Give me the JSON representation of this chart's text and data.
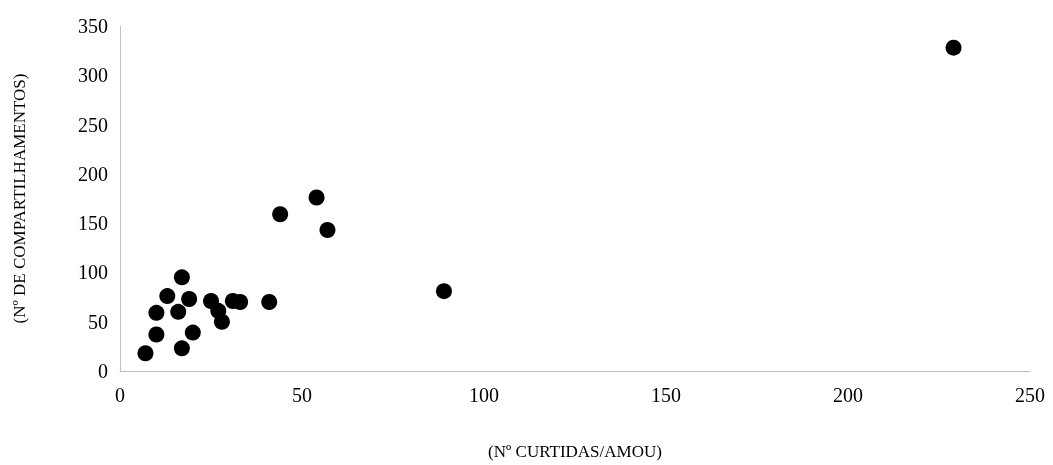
{
  "chart_data": {
    "type": "scatter",
    "xlabel": "(Nº CURTIDAS/AMOU)",
    "ylabel": "(Nº DE COMPARTILHAMENTOS)",
    "x": [
      7,
      10,
      10,
      13,
      16,
      17,
      17,
      19,
      20,
      25,
      27,
      28,
      31,
      33,
      41,
      44,
      54,
      57,
      89,
      229
    ],
    "series": [
      {
        "color": "#000000",
        "values": [
          18,
          37,
          59,
          76,
          60,
          95,
          23,
          73,
          39,
          71,
          61,
          50,
          71,
          70,
          70,
          159,
          176,
          143,
          81,
          328
        ]
      }
    ],
    "xlim": [
      0,
      250
    ],
    "xticks": [
      0,
      50,
      100,
      150,
      200,
      250
    ],
    "ylim": [
      0,
      350
    ],
    "yticks": [
      0,
      50,
      100,
      150,
      200,
      250,
      300,
      350
    ],
    "grid": false,
    "marker": "circle"
  }
}
